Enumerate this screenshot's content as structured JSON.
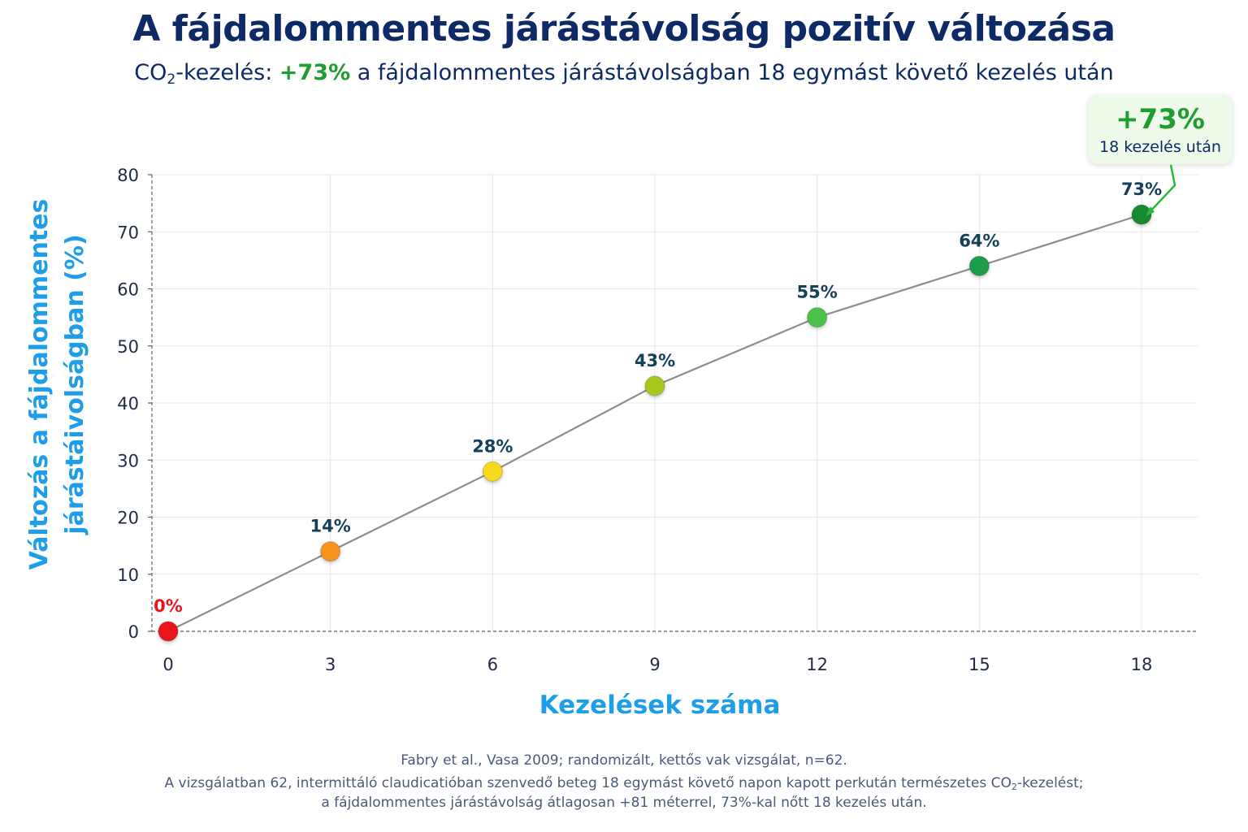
{
  "title": "A fájdalommentes járástávolság pozitív változása",
  "subtitle": {
    "prefix_main": "CO",
    "prefix_sub": "2",
    "prefix_rest": "-kezelés: ",
    "highlight": "+73%",
    "rest": " a fájdalommentes járástávolságban 18 egymást követő kezelés után"
  },
  "callout": {
    "value": "+73%",
    "text": "18 kezelés után"
  },
  "footer": {
    "line1": "Fabry et al., Vasa 2009; randomizált, kettős vak vizsgálat, n=62.",
    "line2_a": "A vizsgálatban 62, intermittáló claudicatióban szenvedő beteg 18 egymást követő napon kapott perkután természetes CO",
    "line2_sub": "2",
    "line2_b": "-kezelést;",
    "line3": "a fájdalommentes járástávolság átlagosan +81 méterrel, 73%-kal nőtt 18 kezelés után."
  },
  "colors": {
    "title": "#0d2a66",
    "axis_label": "#1e9ee8",
    "highlight_green": "#1f9d2e",
    "line": "#8e8e8e",
    "label_dark": "#14405a",
    "label_red": "#e8141c"
  },
  "chart_data": {
    "type": "line",
    "xlabel": "Kezelések száma",
    "ylabel_line1": "Változás a fájdalommentes",
    "ylabel_line2": "járástáivolságban (%)",
    "xlim": [
      0,
      19
    ],
    "ylim": [
      0,
      80
    ],
    "xticks": [
      0,
      3,
      6,
      9,
      12,
      15,
      18
    ],
    "yticks": [
      0,
      10,
      20,
      30,
      40,
      50,
      60,
      70,
      80
    ],
    "grid": true,
    "points": [
      {
        "x": 0,
        "y": 0,
        "label": "0%",
        "color": "#e8141c",
        "label_color": "#e8141c"
      },
      {
        "x": 3,
        "y": 14,
        "label": "14%",
        "color": "#f7941d",
        "label_color": "#14405a"
      },
      {
        "x": 6,
        "y": 28,
        "label": "28%",
        "color": "#f9d71c",
        "label_color": "#14405a"
      },
      {
        "x": 9,
        "y": 43,
        "label": "43%",
        "color": "#a6c81e",
        "label_color": "#14405a"
      },
      {
        "x": 12,
        "y": 55,
        "label": "55%",
        "color": "#4cc24a",
        "label_color": "#14405a"
      },
      {
        "x": 15,
        "y": 64,
        "label": "64%",
        "color": "#1d9e4a",
        "label_color": "#14405a"
      },
      {
        "x": 18,
        "y": 73,
        "label": "73%",
        "color": "#128a2e",
        "label_color": "#14405a"
      }
    ]
  }
}
